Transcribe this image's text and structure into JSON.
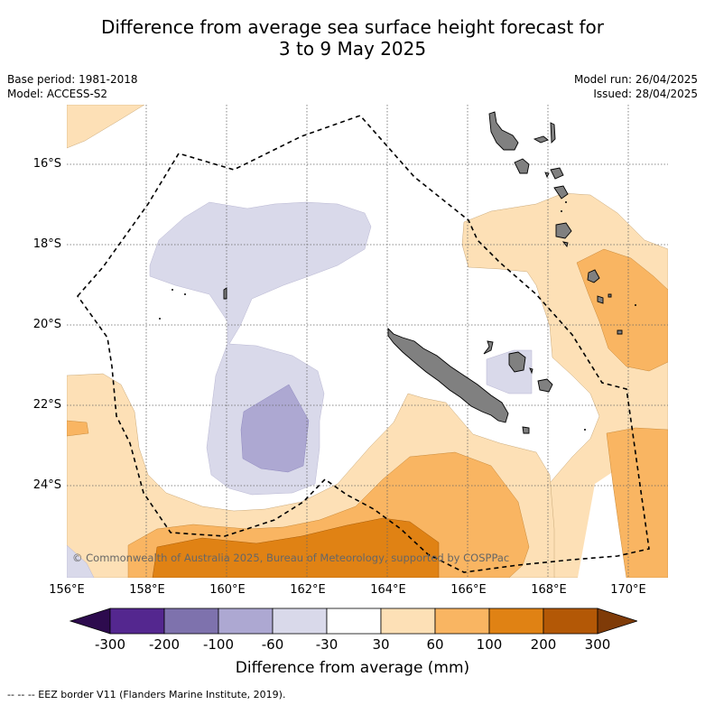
{
  "title_line1": "Difference from average sea surface height forecast for",
  "title_line2": "3 to 9 May 2025",
  "base_period": "Base period: 1981-2018",
  "model": "Model: ACCESS-S2",
  "model_run": "Model run: 26/04/2025",
  "issued": "Issued: 28/04/2025",
  "copyright": "© Commonwealth of Australia 2025, Bureau of Meteorology, supported by COSPPac",
  "lat_labels": [
    "16°S",
    "18°S",
    "20°S",
    "22°S",
    "24°S"
  ],
  "lon_labels": [
    "156°E",
    "158°E",
    "160°E",
    "162°E",
    "164°E",
    "166°E",
    "168°E",
    "170°E"
  ],
  "colorbar": {
    "ticks": [
      "-300",
      "-200",
      "-100",
      "-60",
      "-30",
      "30",
      "60",
      "100",
      "200",
      "300"
    ],
    "colors": [
      "#2d0b4e",
      "#54278f",
      "#7e72ad",
      "#ada8d2",
      "#d9d9ea",
      "#ffffff",
      "#fde0b6",
      "#f9b562",
      "#e08214",
      "#b35806",
      "#7f3b08"
    ],
    "label": "Difference from average (mm)"
  },
  "footer": "--  --  -- EEZ border V11 (Flanders Marine Institute, 2019).",
  "colors": {
    "land": "#808080",
    "light_orange": "#fde0b6",
    "orange": "#f9b562",
    "dark_orange": "#e08214",
    "light_purple": "#d9d9ea",
    "purple": "#ada8d2"
  }
}
